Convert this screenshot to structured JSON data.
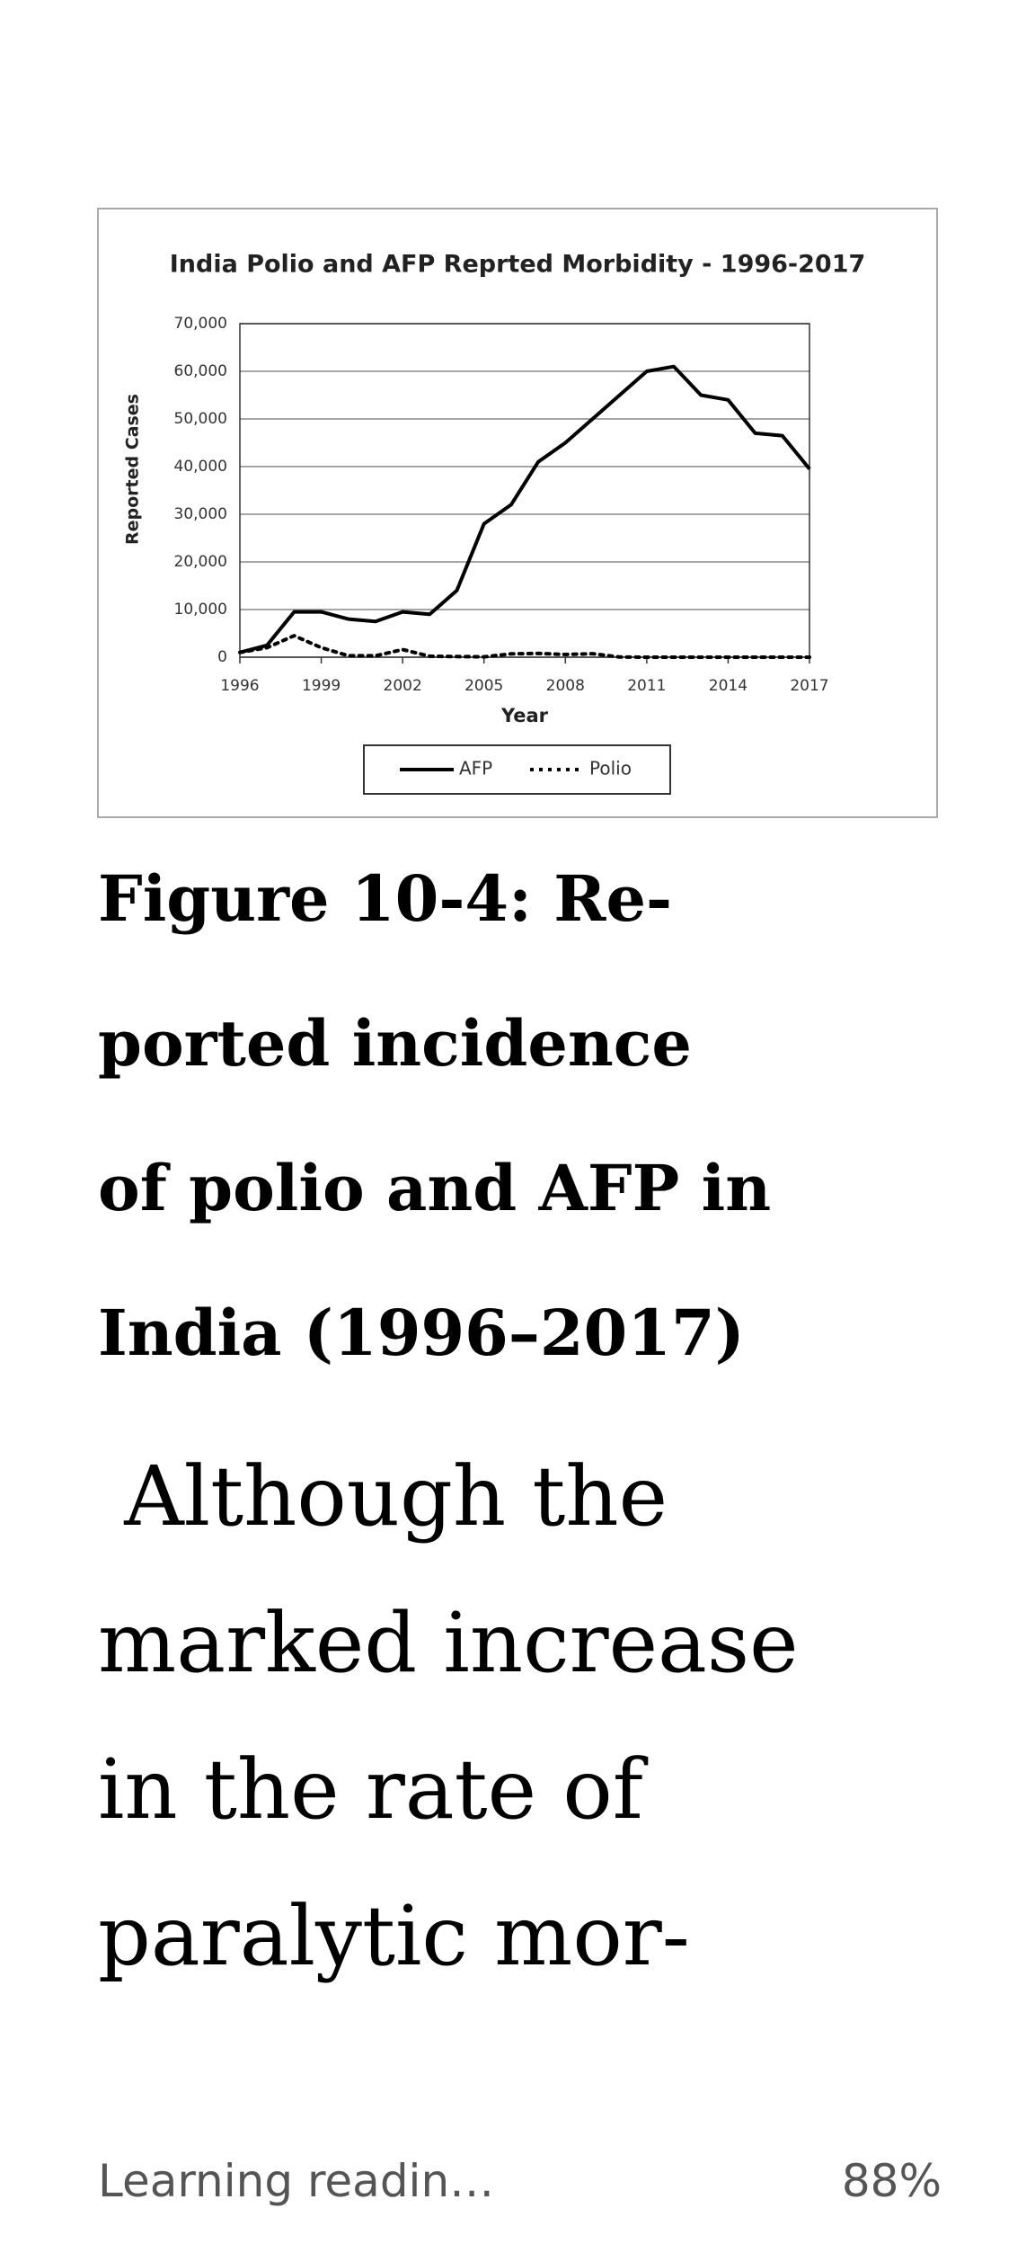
{
  "chart_data": {
    "type": "line",
    "title": "India Polio and AFP Reprted Morbidity - 1996-2017",
    "x_label": "Year",
    "y_label": "Reported Cases",
    "x": [
      1996,
      1997,
      1998,
      1999,
      2000,
      2001,
      2002,
      2003,
      2004,
      2005,
      2006,
      2007,
      2008,
      2009,
      2010,
      2011,
      2012,
      2013,
      2014,
      2015,
      2016,
      2017
    ],
    "series": [
      {
        "name": "AFP",
        "color": "#000000",
        "style": "solid",
        "values": [
          1000,
          2500,
          9500,
          9500,
          8000,
          7500,
          9500,
          9000,
          14000,
          28000,
          32000,
          41000,
          45000,
          50000,
          55000,
          60000,
          61000,
          55000,
          54000,
          47000,
          46500,
          39500
        ]
      },
      {
        "name": "Polio",
        "color": "#000000",
        "style": "dotted",
        "values": [
          1000,
          2000,
          4500,
          2000,
          300,
          300,
          1600,
          200,
          130,
          70,
          700,
          800,
          560,
          740,
          42,
          1,
          0,
          0,
          0,
          0,
          0,
          0
        ]
      }
    ],
    "xlim": [
      1996,
      2017
    ],
    "xticks": [
      1996,
      1999,
      2002,
      2005,
      2008,
      2011,
      2014,
      2017
    ],
    "ylim": [
      0,
      70000
    ],
    "yticks": [
      0,
      {
        "value": 10000,
        "label": "10,000"
      },
      {
        "value": 20000,
        "label": "20,000"
      },
      {
        "value": 30000,
        "label": "30,000"
      },
      {
        "value": 40000,
        "label": "40,000"
      },
      {
        "value": 50000,
        "label": "50,000"
      },
      {
        "value": 60000,
        "label": "60,000"
      },
      {
        "value": 70000,
        "label": "70,000"
      }
    ],
    "grid": true,
    "legend": "bottom"
  },
  "caption_lines": [
    "Figure 10-4: Re-",
    "ported incidence",
    "of polio and AFP in",
    "India (1996–2017)"
  ],
  "body_lines": [
    " Although the",
    "marked increase",
    "in the rate of",
    "paralytic mor-"
  ],
  "footer": {
    "book": "Learning readin…",
    "progress": "88%"
  }
}
